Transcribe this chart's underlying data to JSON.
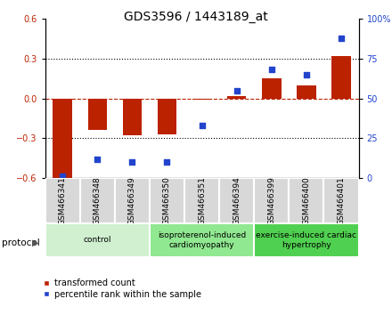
{
  "title": "GDS3596 / 1443189_at",
  "samples": [
    "GSM466341",
    "GSM466348",
    "GSM466349",
    "GSM466350",
    "GSM466351",
    "GSM466394",
    "GSM466399",
    "GSM466400",
    "GSM466401"
  ],
  "transformed_count": [
    -0.6,
    -0.24,
    -0.28,
    -0.27,
    -0.01,
    0.02,
    0.15,
    0.1,
    0.32
  ],
  "percentile_rank": [
    1,
    12,
    10,
    10,
    33,
    55,
    68,
    65,
    88
  ],
  "groups": [
    {
      "label": "control",
      "start": 0,
      "end": 3,
      "color": "#d0f0d0"
    },
    {
      "label": "isoproterenol-induced\ncardiomyopathy",
      "start": 3,
      "end": 6,
      "color": "#90e890"
    },
    {
      "label": "exercise-induced cardiac\nhypertrophy",
      "start": 6,
      "end": 9,
      "color": "#50d050"
    }
  ],
  "ylim_left": [
    -0.6,
    0.6
  ],
  "ylim_right": [
    0,
    100
  ],
  "yticks_left": [
    -0.6,
    -0.3,
    0.0,
    0.3,
    0.6
  ],
  "yticks_right": [
    0,
    25,
    50,
    75,
    100
  ],
  "bar_color": "#bb2200",
  "dot_color": "#2244cc",
  "title_fontsize": 10,
  "tick_fontsize": 7,
  "label_fontsize": 7,
  "group_label_fontsize": 6.5,
  "protocol_fontsize": 7.5,
  "sample_fontsize": 6.5
}
